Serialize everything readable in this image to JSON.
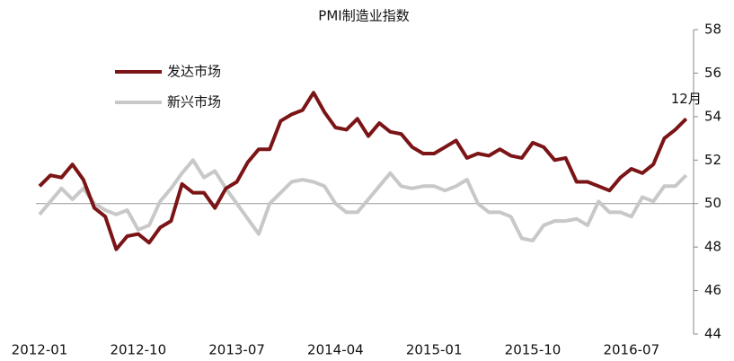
{
  "chart_data": {
    "type": "line",
    "title": "PMI制造业指数",
    "categories": [
      "2012-01",
      null,
      null,
      null,
      null,
      null,
      null,
      null,
      null,
      "2012-10",
      null,
      null,
      null,
      null,
      null,
      null,
      null,
      null,
      "2013-07",
      null,
      null,
      null,
      null,
      null,
      null,
      null,
      null,
      "2014-04",
      null,
      null,
      null,
      null,
      null,
      null,
      null,
      null,
      "2015-01",
      null,
      null,
      null,
      null,
      null,
      null,
      null,
      null,
      "2015-10",
      null,
      null,
      null,
      null,
      null,
      null,
      null,
      null,
      "2016-07",
      null,
      null,
      null,
      null,
      null
    ],
    "series": [
      {
        "name": "发达市场",
        "color": "#7b1416",
        "values": [
          50.8,
          51.3,
          51.2,
          51.8,
          51.1,
          49.8,
          49.4,
          47.9,
          48.5,
          48.6,
          48.2,
          48.9,
          49.2,
          50.9,
          50.5,
          50.5,
          49.8,
          50.7,
          51.0,
          51.9,
          52.5,
          52.5,
          53.8,
          54.1,
          54.3,
          55.1,
          54.2,
          53.5,
          53.4,
          53.9,
          53.1,
          53.7,
          53.3,
          53.2,
          52.6,
          52.3,
          52.3,
          52.6,
          52.9,
          52.1,
          52.3,
          52.2,
          52.5,
          52.2,
          52.1,
          52.8,
          52.6,
          52.0,
          52.1,
          51.0,
          51.0,
          50.8,
          50.6,
          51.2,
          51.6,
          51.4,
          51.8,
          53.0,
          53.4,
          53.9
        ]
      },
      {
        "name": "新兴市场",
        "color": "#c8c8c8",
        "values": [
          49.5,
          50.1,
          50.7,
          50.2,
          50.7,
          50.0,
          49.7,
          49.5,
          49.7,
          48.8,
          49.0,
          50.1,
          50.7,
          51.4,
          52.0,
          51.2,
          51.5,
          50.7,
          50.0,
          49.3,
          48.6,
          50.0,
          50.5,
          51.0,
          51.1,
          51.0,
          50.8,
          50.0,
          49.6,
          49.6,
          50.2,
          50.8,
          51.4,
          50.8,
          50.7,
          50.8,
          50.8,
          50.6,
          50.8,
          51.1,
          50.0,
          49.6,
          49.6,
          49.4,
          48.4,
          48.3,
          49.0,
          49.2,
          49.2,
          49.3,
          49.0,
          50.1,
          49.6,
          49.6,
          49.4,
          50.3,
          50.1,
          50.8,
          50.8,
          51.3
        ]
      }
    ],
    "annotation": "12月",
    "ylim": [
      44,
      58
    ],
    "yticks": [
      44,
      46,
      48,
      50,
      52,
      54,
      56,
      58
    ],
    "baseline": 50,
    "legend": "upper left"
  }
}
